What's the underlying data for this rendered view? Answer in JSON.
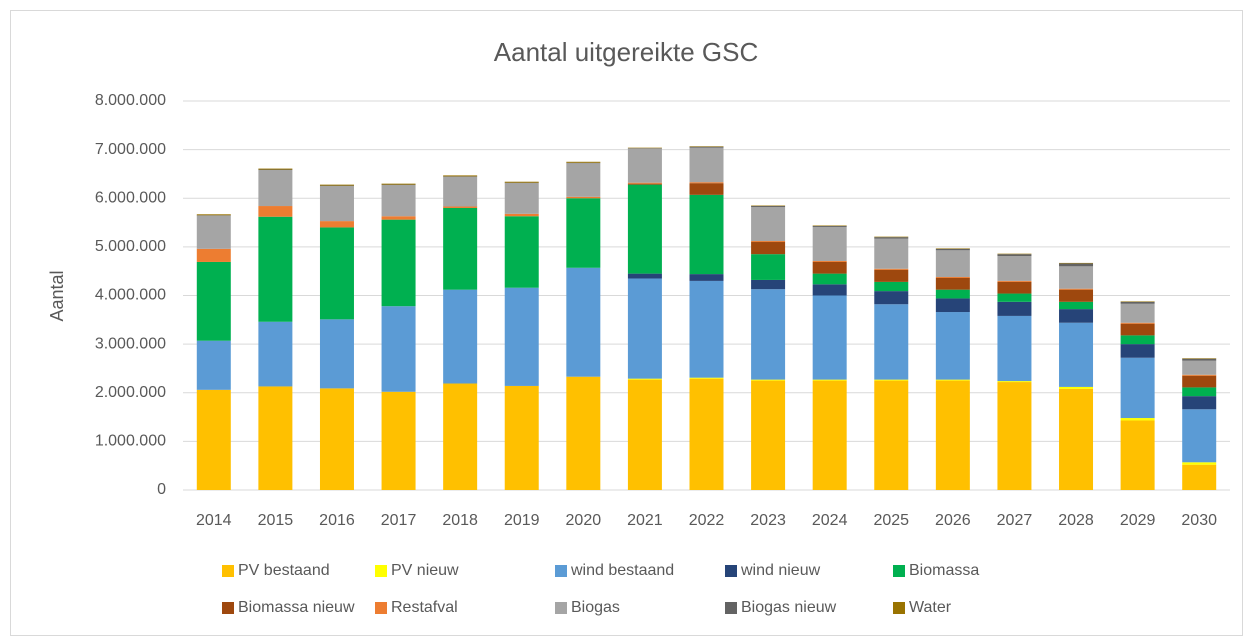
{
  "chart_data": {
    "type": "stacked_bar",
    "title": "Aantal uitgereikte GSC",
    "y_label": "Aantal",
    "categories": [
      "2014",
      "2015",
      "2016",
      "2017",
      "2018",
      "2019",
      "2020",
      "2021",
      "2022",
      "2023",
      "2024",
      "2025",
      "2026",
      "2027",
      "2028",
      "2029",
      "2030"
    ],
    "series": [
      {
        "name": "PV bestaand",
        "color": "#ffc000",
        "values": [
          2060000,
          2130000,
          2090000,
          2020000,
          2190000,
          2140000,
          2330000,
          2270000,
          2290000,
          2250000,
          2250000,
          2250000,
          2250000,
          2220000,
          2080000,
          1430000,
          520000
        ]
      },
      {
        "name": "PV nieuw",
        "color": "#ffff00",
        "values": [
          0,
          0,
          0,
          0,
          0,
          0,
          0,
          20000,
          20000,
          20000,
          20000,
          20000,
          20000,
          20000,
          40000,
          50000,
          50000
        ]
      },
      {
        "name": "wind bestaand",
        "color": "#5b9bd5",
        "values": [
          1010000,
          1330000,
          1420000,
          1760000,
          1930000,
          2020000,
          2240000,
          2060000,
          1990000,
          1860000,
          1730000,
          1550000,
          1390000,
          1340000,
          1320000,
          1240000,
          1090000
        ]
      },
      {
        "name": "wind nieuw",
        "color": "#264478",
        "values": [
          0,
          0,
          0,
          0,
          0,
          0,
          0,
          100000,
          140000,
          190000,
          230000,
          270000,
          280000,
          290000,
          280000,
          280000,
          270000
        ]
      },
      {
        "name": "Biomassa",
        "color": "#00b050",
        "values": [
          1620000,
          2160000,
          1890000,
          1780000,
          1680000,
          1470000,
          1430000,
          1830000,
          1630000,
          530000,
          220000,
          190000,
          180000,
          170000,
          150000,
          180000,
          180000
        ]
      },
      {
        "name": "Biomassa nieuw",
        "color": "#9e480e",
        "values": [
          0,
          0,
          0,
          0,
          0,
          0,
          0,
          20000,
          240000,
          250000,
          240000,
          250000,
          240000,
          240000,
          250000,
          240000,
          240000
        ]
      },
      {
        "name": "Restafval",
        "color": "#ed7d31",
        "values": [
          270000,
          220000,
          130000,
          70000,
          30000,
          50000,
          30000,
          20000,
          20000,
          20000,
          20000,
          20000,
          20000,
          20000,
          20000,
          20000,
          20000
        ]
      },
      {
        "name": "Biogas",
        "color": "#a5a5a5",
        "values": [
          680000,
          740000,
          720000,
          640000,
          610000,
          630000,
          690000,
          700000,
          710000,
          700000,
          700000,
          620000,
          550000,
          510000,
          460000,
          390000,
          290000
        ]
      },
      {
        "name": "Biogas nieuw",
        "color": "#636363",
        "values": [
          10000,
          10000,
          10000,
          10000,
          10000,
          10000,
          10000,
          10000,
          20000,
          20000,
          20000,
          30000,
          30000,
          40000,
          60000,
          40000,
          40000
        ]
      },
      {
        "name": "Water",
        "color": "#997300",
        "values": [
          20000,
          20000,
          20000,
          20000,
          20000,
          20000,
          20000,
          10000,
          10000,
          10000,
          10000,
          10000,
          10000,
          10000,
          10000,
          10000,
          10000
        ]
      }
    ],
    "ylim": [
      0,
      8000000
    ],
    "yticks": [
      0,
      {
        "value": 1000000,
        "label": "1.000.000"
      },
      {
        "value": 2000000,
        "label": "2.000.000"
      },
      {
        "value": 3000000,
        "label": "3.000.000"
      },
      {
        "value": 4000000,
        "label": "4.000.000"
      },
      {
        "value": 5000000,
        "label": "5.000.000"
      },
      {
        "value": 6000000,
        "label": "6.000.000"
      },
      {
        "value": 7000000,
        "label": "7.000.000"
      },
      {
        "value": 8000000,
        "label": "8.000.000"
      }
    ],
    "grid": true,
    "legend": "bottom"
  }
}
